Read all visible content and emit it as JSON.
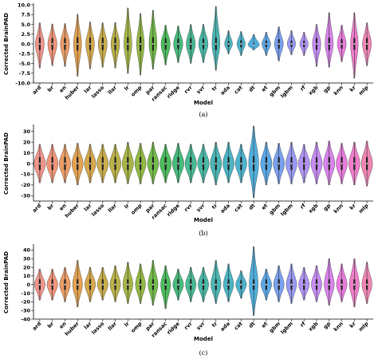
{
  "chart_data": [
    {
      "type": "violin",
      "caption": "(a)",
      "xlabel": "Model",
      "ylabel": "Corrected BrainPAD",
      "ylim": [
        -10.0,
        10.0
      ],
      "yticks": [
        "10.0",
        "7.5",
        "5.0",
        "2.5",
        "0.0",
        "-2.5",
        "-5.0",
        "-7.5",
        "-10.0"
      ],
      "ytick_values": [
        10.0,
        7.5,
        5.0,
        2.5,
        0.0,
        -2.5,
        -5.0,
        -7.5,
        -10.0
      ],
      "grid": false,
      "categories": [
        "ard",
        "br",
        "en",
        "huber",
        "lar",
        "lasso",
        "llar",
        "lr",
        "omp",
        "par",
        "ransac",
        "ridge",
        "rvr",
        "svr",
        "tr",
        "ada",
        "cat",
        "dt",
        "et",
        "gbm",
        "lgbm",
        "rf",
        "xgb",
        "gp",
        "knn",
        "kr",
        "mlp"
      ],
      "colors": [
        "#f08a7e",
        "#ee8a6a",
        "#e99155",
        "#e0983d",
        "#d29e3a",
        "#c3a438",
        "#b2a935",
        "#9fad33",
        "#86b131",
        "#63b434",
        "#39b54a",
        "#33b36f",
        "#34b189",
        "#35b09c",
        "#36aeac",
        "#37acbb",
        "#3aaac9",
        "#3ca5d8",
        "#4a9ee4",
        "#6c97ee",
        "#8d8ff2",
        "#a987f4",
        "#c17ff3",
        "#d675ea",
        "#e56fd9",
        "#ed70c4",
        "#f079ad"
      ],
      "series": [
        {
          "min": -6.2,
          "max": 5.4,
          "q1": -1.6,
          "median": 0.0,
          "q3": 1.6,
          "width": 0.7
        },
        {
          "min": -5.6,
          "max": 5.1,
          "q1": -1.5,
          "median": 0.0,
          "q3": 1.5,
          "width": 0.72
        },
        {
          "min": -5.8,
          "max": 5.2,
          "q1": -1.5,
          "median": 0.0,
          "q3": 1.5,
          "width": 0.72
        },
        {
          "min": -8.3,
          "max": 7.6,
          "q1": -1.7,
          "median": 0.0,
          "q3": 1.7,
          "width": 0.62
        },
        {
          "min": -6.4,
          "max": 5.6,
          "q1": -1.6,
          "median": 0.0,
          "q3": 1.6,
          "width": 0.68
        },
        {
          "min": -6.0,
          "max": 5.4,
          "q1": -1.6,
          "median": 0.0,
          "q3": 1.6,
          "width": 0.7
        },
        {
          "min": -6.2,
          "max": 5.5,
          "q1": -1.6,
          "median": 0.0,
          "q3": 1.6,
          "width": 0.68
        },
        {
          "min": -7.6,
          "max": 9.2,
          "q1": -1.7,
          "median": 0.0,
          "q3": 1.7,
          "width": 0.62
        },
        {
          "min": -8.0,
          "max": 7.8,
          "q1": -1.8,
          "median": 0.0,
          "q3": 1.8,
          "width": 0.6
        },
        {
          "min": -6.5,
          "max": 8.6,
          "q1": -1.7,
          "median": 0.0,
          "q3": 1.7,
          "width": 0.62
        },
        {
          "min": -5.4,
          "max": 4.8,
          "q1": -1.4,
          "median": 0.0,
          "q3": 1.4,
          "width": 0.72
        },
        {
          "min": -4.8,
          "max": 4.6,
          "q1": -1.3,
          "median": 0.0,
          "q3": 1.3,
          "width": 0.74
        },
        {
          "min": -5.0,
          "max": 5.0,
          "q1": -1.4,
          "median": 0.0,
          "q3": 1.4,
          "width": 0.72
        },
        {
          "min": -4.8,
          "max": 5.0,
          "q1": -1.3,
          "median": 0.0,
          "q3": 1.3,
          "width": 0.74
        },
        {
          "min": -6.8,
          "max": 9.6,
          "q1": -1.6,
          "median": 0.0,
          "q3": 1.6,
          "width": 0.62
        },
        {
          "min": -2.6,
          "max": 3.4,
          "q1": -0.7,
          "median": 0.0,
          "q3": 0.7,
          "width": 0.62
        },
        {
          "min": -3.0,
          "max": 3.2,
          "q1": -0.9,
          "median": 0.0,
          "q3": 0.9,
          "width": 0.66
        },
        {
          "min": -1.6,
          "max": 2.4,
          "q1": -0.3,
          "median": -0.3,
          "q3": 0.1,
          "width": 0.9
        },
        {
          "min": -3.0,
          "max": 3.0,
          "q1": -0.8,
          "median": 0.0,
          "q3": 0.8,
          "width": 0.68
        },
        {
          "min": -4.4,
          "max": 4.4,
          "q1": -1.2,
          "median": 0.0,
          "q3": 1.2,
          "width": 0.7
        },
        {
          "min": -2.8,
          "max": 3.4,
          "q1": -0.8,
          "median": 0.0,
          "q3": 0.8,
          "width": 0.66
        },
        {
          "min": -3.0,
          "max": 3.0,
          "q1": -0.8,
          "median": 0.0,
          "q3": 0.8,
          "width": 0.66
        },
        {
          "min": -5.8,
          "max": 5.0,
          "q1": -1.5,
          "median": 0.0,
          "q3": 1.5,
          "width": 0.66
        },
        {
          "min": -6.0,
          "max": 8.0,
          "q1": -1.6,
          "median": 0.0,
          "q3": 1.6,
          "width": 0.64
        },
        {
          "min": -4.6,
          "max": 4.8,
          "q1": -1.2,
          "median": 0.0,
          "q3": 1.2,
          "width": 0.7
        },
        {
          "min": -8.8,
          "max": 8.0,
          "q1": -1.5,
          "median": 0.0,
          "q3": 1.5,
          "width": 0.6
        },
        {
          "min": -5.6,
          "max": 5.4,
          "q1": -1.5,
          "median": 0.0,
          "q3": 1.5,
          "width": 0.7
        }
      ]
    },
    {
      "type": "violin",
      "caption": "(b)",
      "xlabel": "Model",
      "ylabel": "Corrected BrainPAD",
      "ylim": [
        -35,
        35
      ],
      "yticks": [
        "30",
        "20",
        "10",
        "0",
        "-10",
        "-20",
        "-30"
      ],
      "ytick_values": [
        30,
        20,
        10,
        0,
        -10,
        -20,
        -30
      ],
      "grid": false,
      "categories": [
        "ard",
        "br",
        "en",
        "huber",
        "lar",
        "lasso",
        "llar",
        "lr",
        "omp",
        "par",
        "ransac",
        "ridge",
        "rvr",
        "svr",
        "tr",
        "ada",
        "cat",
        "dt",
        "et",
        "gbm",
        "lgbm",
        "rf",
        "xgb",
        "gp",
        "knn",
        "kr",
        "mlp"
      ],
      "colors": [
        "#f08a7e",
        "#ee8a6a",
        "#e99155",
        "#e0983d",
        "#d29e3a",
        "#c3a438",
        "#b2a935",
        "#9fad33",
        "#86b131",
        "#63b434",
        "#39b54a",
        "#33b36f",
        "#34b189",
        "#35b09c",
        "#36aeac",
        "#37acbb",
        "#3aaac9",
        "#3ca5d8",
        "#4a9ee4",
        "#6c97ee",
        "#8d8ff2",
        "#a987f4",
        "#c17ff3",
        "#d675ea",
        "#e56fd9",
        "#ed70c4",
        "#f079ad"
      ],
      "series": [
        {
          "min": -18,
          "max": 18,
          "q1": -6,
          "median": 0,
          "q3": 6,
          "width": 0.92
        },
        {
          "min": -18,
          "max": 18,
          "q1": -6,
          "median": 0,
          "q3": 6,
          "width": 0.92
        },
        {
          "min": -18,
          "max": 18,
          "q1": -6,
          "median": 0,
          "q3": 6,
          "width": 0.92
        },
        {
          "min": -20,
          "max": 19,
          "q1": -6,
          "median": 0,
          "q3": 6,
          "width": 0.9
        },
        {
          "min": -18,
          "max": 18,
          "q1": -6,
          "median": 0,
          "q3": 6,
          "width": 0.92
        },
        {
          "min": -18,
          "max": 18,
          "q1": -6,
          "median": 0,
          "q3": 6,
          "width": 0.92
        },
        {
          "min": -18,
          "max": 18,
          "q1": -6,
          "median": 0,
          "q3": 6,
          "width": 0.92
        },
        {
          "min": -19,
          "max": 20,
          "q1": -6,
          "median": 0,
          "q3": 6,
          "width": 0.9
        },
        {
          "min": -19,
          "max": 19,
          "q1": -6,
          "median": 0,
          "q3": 6,
          "width": 0.9
        },
        {
          "min": -19,
          "max": 20,
          "q1": -6,
          "median": 0,
          "q3": 6,
          "width": 0.9
        },
        {
          "min": -18,
          "max": 18,
          "q1": -6,
          "median": 0,
          "q3": 6,
          "width": 0.92
        },
        {
          "min": -18,
          "max": 19,
          "q1": -6,
          "median": 0,
          "q3": 6,
          "width": 0.92
        },
        {
          "min": -18,
          "max": 18,
          "q1": -6,
          "median": 0,
          "q3": 6,
          "width": 0.92
        },
        {
          "min": -18,
          "max": 18,
          "q1": -6,
          "median": 0,
          "q3": 6,
          "width": 0.92
        },
        {
          "min": -20,
          "max": 20,
          "q1": -6,
          "median": 0,
          "q3": 6,
          "width": 0.9
        },
        {
          "min": -18,
          "max": 20,
          "q1": -6,
          "median": 0,
          "q3": 6,
          "width": 0.9
        },
        {
          "min": -18,
          "max": 18,
          "q1": -6,
          "median": 0,
          "q3": 6,
          "width": 0.92
        },
        {
          "min": -32,
          "max": 35,
          "q1": -7,
          "median": 0,
          "q3": 7,
          "width": 0.8
        },
        {
          "min": -20,
          "max": 20,
          "q1": -6,
          "median": 0,
          "q3": 6,
          "width": 0.9
        },
        {
          "min": -19,
          "max": 19,
          "q1": -6,
          "median": 0,
          "q3": 6,
          "width": 0.9
        },
        {
          "min": -19,
          "max": 20,
          "q1": -6,
          "median": 0,
          "q3": 6,
          "width": 0.9
        },
        {
          "min": -18,
          "max": 18,
          "q1": -6,
          "median": 0,
          "q3": 6,
          "width": 0.92
        },
        {
          "min": -19,
          "max": 20,
          "q1": -6,
          "median": 0,
          "q3": 6,
          "width": 0.9
        },
        {
          "min": -20,
          "max": 21,
          "q1": -6,
          "median": 0,
          "q3": 6,
          "width": 0.9
        },
        {
          "min": -19,
          "max": 19,
          "q1": -6,
          "median": 0,
          "q3": 6,
          "width": 0.9
        },
        {
          "min": -20,
          "max": 20,
          "q1": -6,
          "median": 0,
          "q3": 6,
          "width": 0.9
        },
        {
          "min": -21,
          "max": 21,
          "q1": -6,
          "median": 0,
          "q3": 6,
          "width": 0.9
        }
      ]
    },
    {
      "type": "violin",
      "caption": "(c)",
      "xlabel": "Model",
      "ylabel": "Corrected BrainPAD",
      "ylim": [
        -40,
        45
      ],
      "yticks": [
        "40",
        "30",
        "20",
        "10",
        "0",
        "-10",
        "-20",
        "-30",
        "-40"
      ],
      "ytick_values": [
        40,
        30,
        20,
        10,
        0,
        -10,
        -20,
        -30,
        -40
      ],
      "grid": false,
      "categories": [
        "ard",
        "br",
        "en",
        "huber",
        "lar",
        "lasso",
        "llar",
        "lr",
        "omp",
        "par",
        "ransac",
        "ridge",
        "rvr",
        "svr",
        "tr",
        "ada",
        "cat",
        "dt",
        "et",
        "gbm",
        "lgbm",
        "rf",
        "xgb",
        "gp",
        "knn",
        "kr",
        "mlp"
      ],
      "colors": [
        "#f08a7e",
        "#ee8a6a",
        "#e99155",
        "#e0983d",
        "#d29e3a",
        "#c3a438",
        "#b2a935",
        "#9fad33",
        "#86b131",
        "#63b434",
        "#39b54a",
        "#33b36f",
        "#34b189",
        "#35b09c",
        "#36aeac",
        "#37acbb",
        "#3aaac9",
        "#3ca5d8",
        "#4a9ee4",
        "#6c97ee",
        "#8d8ff2",
        "#a987f4",
        "#c17ff3",
        "#d675ea",
        "#e56fd9",
        "#ed70c4",
        "#f079ad"
      ],
      "series": [
        {
          "min": -18,
          "max": 18,
          "q1": -6,
          "median": 0,
          "q3": 6,
          "width": 0.85
        },
        {
          "min": -18,
          "max": 18,
          "q1": -6,
          "median": 0,
          "q3": 6,
          "width": 0.85
        },
        {
          "min": -20,
          "max": 20,
          "q1": -6,
          "median": 0,
          "q3": 6,
          "width": 0.85
        },
        {
          "min": -26,
          "max": 28,
          "q1": -6,
          "median": 0,
          "q3": 6,
          "width": 0.78
        },
        {
          "min": -20,
          "max": 20,
          "q1": -6,
          "median": 0,
          "q3": 6,
          "width": 0.85
        },
        {
          "min": -18,
          "max": 20,
          "q1": -6,
          "median": 0,
          "q3": 6,
          "width": 0.85
        },
        {
          "min": -20,
          "max": 22,
          "q1": -6,
          "median": 0,
          "q3": 6,
          "width": 0.84
        },
        {
          "min": -22,
          "max": 26,
          "q1": -6,
          "median": 0,
          "q3": 6,
          "width": 0.8
        },
        {
          "min": -22,
          "max": 24,
          "q1": -6,
          "median": 0,
          "q3": 6,
          "width": 0.8
        },
        {
          "min": -24,
          "max": 28,
          "q1": -6,
          "median": 0,
          "q3": 6,
          "width": 0.78
        },
        {
          "min": -28,
          "max": 22,
          "q1": -6,
          "median": 0,
          "q3": 6,
          "width": 0.78
        },
        {
          "min": -18,
          "max": 18,
          "q1": -6,
          "median": 0,
          "q3": 6,
          "width": 0.85
        },
        {
          "min": -20,
          "max": 20,
          "q1": -6,
          "median": 0,
          "q3": 6,
          "width": 0.84
        },
        {
          "min": -20,
          "max": 20,
          "q1": -6,
          "median": 0,
          "q3": 6,
          "width": 0.84
        },
        {
          "min": -22,
          "max": 28,
          "q1": -6,
          "median": 0,
          "q3": 6,
          "width": 0.8
        },
        {
          "min": -20,
          "max": 24,
          "q1": -6,
          "median": 0,
          "q3": 6,
          "width": 0.82
        },
        {
          "min": -16,
          "max": 16,
          "q1": -5,
          "median": 0,
          "q3": 5,
          "width": 0.86
        },
        {
          "min": -36,
          "max": 44,
          "q1": -6,
          "median": 0,
          "q3": 6,
          "width": 0.7
        },
        {
          "min": -18,
          "max": 18,
          "q1": -6,
          "median": 0,
          "q3": 6,
          "width": 0.85
        },
        {
          "min": -20,
          "max": 22,
          "q1": -6,
          "median": 0,
          "q3": 6,
          "width": 0.84
        },
        {
          "min": -22,
          "max": 24,
          "q1": -6,
          "median": 0,
          "q3": 6,
          "width": 0.82
        },
        {
          "min": -18,
          "max": 20,
          "q1": -6,
          "median": 0,
          "q3": 6,
          "width": 0.85
        },
        {
          "min": -20,
          "max": 22,
          "q1": -6,
          "median": 0,
          "q3": 6,
          "width": 0.84
        },
        {
          "min": -24,
          "max": 30,
          "q1": -6,
          "median": 0,
          "q3": 6,
          "width": 0.8
        },
        {
          "min": -20,
          "max": 24,
          "q1": -6,
          "median": 0,
          "q3": 6,
          "width": 0.84
        },
        {
          "min": -26,
          "max": 30,
          "q1": -6,
          "median": 0,
          "q3": 6,
          "width": 0.78
        },
        {
          "min": -22,
          "max": 26,
          "q1": -6,
          "median": 0,
          "q3": 6,
          "width": 0.8
        }
      ]
    }
  ]
}
